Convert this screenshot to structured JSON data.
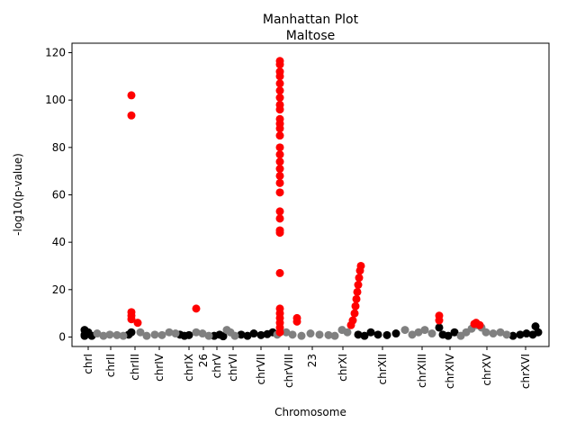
{
  "chart_data": {
    "type": "scatter",
    "title": "Manhattan Plot",
    "subtitle": "Maltose",
    "x_label": "Chromosome",
    "y_label": "-log10(p-value)",
    "xlim": [
      0,
      530
    ],
    "ylim": [
      -4,
      124
    ],
    "yticks": [
      0,
      20,
      40,
      60,
      80,
      100,
      120
    ],
    "xticks": [
      {
        "value": 18,
        "label": "chrI"
      },
      {
        "value": 43,
        "label": "chrII"
      },
      {
        "value": 70,
        "label": "chrIII"
      },
      {
        "value": 97,
        "label": "chrIV"
      },
      {
        "value": 130,
        "label": "chrIX"
      },
      {
        "value": 146,
        "label": "26"
      },
      {
        "value": 161,
        "label": "chrV"
      },
      {
        "value": 179,
        "label": "chrVI"
      },
      {
        "value": 210,
        "label": "chrVII"
      },
      {
        "value": 241,
        "label": "chrVIII"
      },
      {
        "value": 267,
        "label": "23"
      },
      {
        "value": 301,
        "label": "chrXI"
      },
      {
        "value": 345,
        "label": "chrXII"
      },
      {
        "value": 389,
        "label": "chrXIII"
      },
      {
        "value": 420,
        "label": "chrXIV"
      },
      {
        "value": 461,
        "label": "chrXV"
      },
      {
        "value": 504,
        "label": "chrXVI"
      }
    ],
    "grid": false,
    "series": [
      {
        "color": "#000000",
        "x": [
          14,
          14,
          14,
          18,
          22,
          63,
          66,
          120,
          125,
          130,
          158,
          164,
          168,
          188,
          195,
          202,
          210,
          217,
          223,
          318,
          325,
          332,
          340,
          350,
          360,
          408,
          412,
          418,
          425,
          490,
          498,
          505,
          512,
          515,
          518
        ],
        "values": [
          3,
          1,
          0.5,
          2,
          0.5,
          1,
          2,
          1,
          0.5,
          0.8,
          0.5,
          1,
          0.3,
          1,
          0.5,
          1.5,
          0.8,
          1.2,
          2,
          1,
          0.5,
          2,
          1,
          0.8,
          1.5,
          4,
          1,
          0.5,
          2,
          0.5,
          1,
          1.5,
          1,
          4.5,
          2
        ]
      },
      {
        "color": "#808080",
        "x": [
          28,
          35,
          42,
          50,
          57,
          76,
          83,
          92,
          100,
          108,
          115,
          138,
          145,
          152,
          172,
          176,
          181,
          228,
          238,
          245,
          255,
          265,
          275,
          285,
          292,
          300,
          306,
          370,
          378,
          385,
          392,
          400,
          432,
          438,
          444,
          450,
          455,
          460,
          468,
          476,
          483
        ],
        "values": [
          1.5,
          0.5,
          1,
          0.8,
          0.5,
          2,
          0.5,
          1,
          0.8,
          2,
          1.5,
          2,
          1.5,
          0.5,
          3,
          2,
          0.5,
          1,
          2,
          1,
          0.5,
          1.5,
          1,
          0.8,
          0.5,
          3,
          2,
          3,
          1,
          2,
          3,
          1.5,
          0.5,
          2,
          3.5,
          5,
          4,
          2,
          1.5,
          2,
          1
        ]
      },
      {
        "color": "#ff0000",
        "x": [
          66,
          66,
          66,
          66,
          66,
          73,
          138,
          231,
          231,
          231,
          231,
          231,
          231,
          231,
          231,
          231,
          231,
          231,
          231,
          231,
          231,
          231,
          231,
          231,
          231,
          231,
          231,
          231,
          231,
          231,
          231,
          231,
          231,
          231,
          231,
          231,
          231,
          231,
          250,
          250,
          310,
          312,
          314,
          315,
          316,
          317,
          318,
          319,
          320,
          321,
          408,
          408,
          447,
          449,
          453
        ],
        "values": [
          102,
          93.5,
          10.5,
          9,
          7.5,
          6,
          12,
          116.5,
          115,
          112,
          110,
          107,
          104,
          101,
          98,
          96,
          92,
          90,
          88,
          85,
          80,
          77,
          74,
          71,
          68,
          65,
          61,
          53,
          50,
          45,
          44,
          27,
          12,
          10,
          8,
          6,
          4,
          2,
          8,
          6.5,
          5,
          7,
          10,
          13,
          16,
          19,
          22,
          25,
          28,
          30,
          9,
          7,
          5.5,
          6,
          5
        ]
      }
    ]
  }
}
